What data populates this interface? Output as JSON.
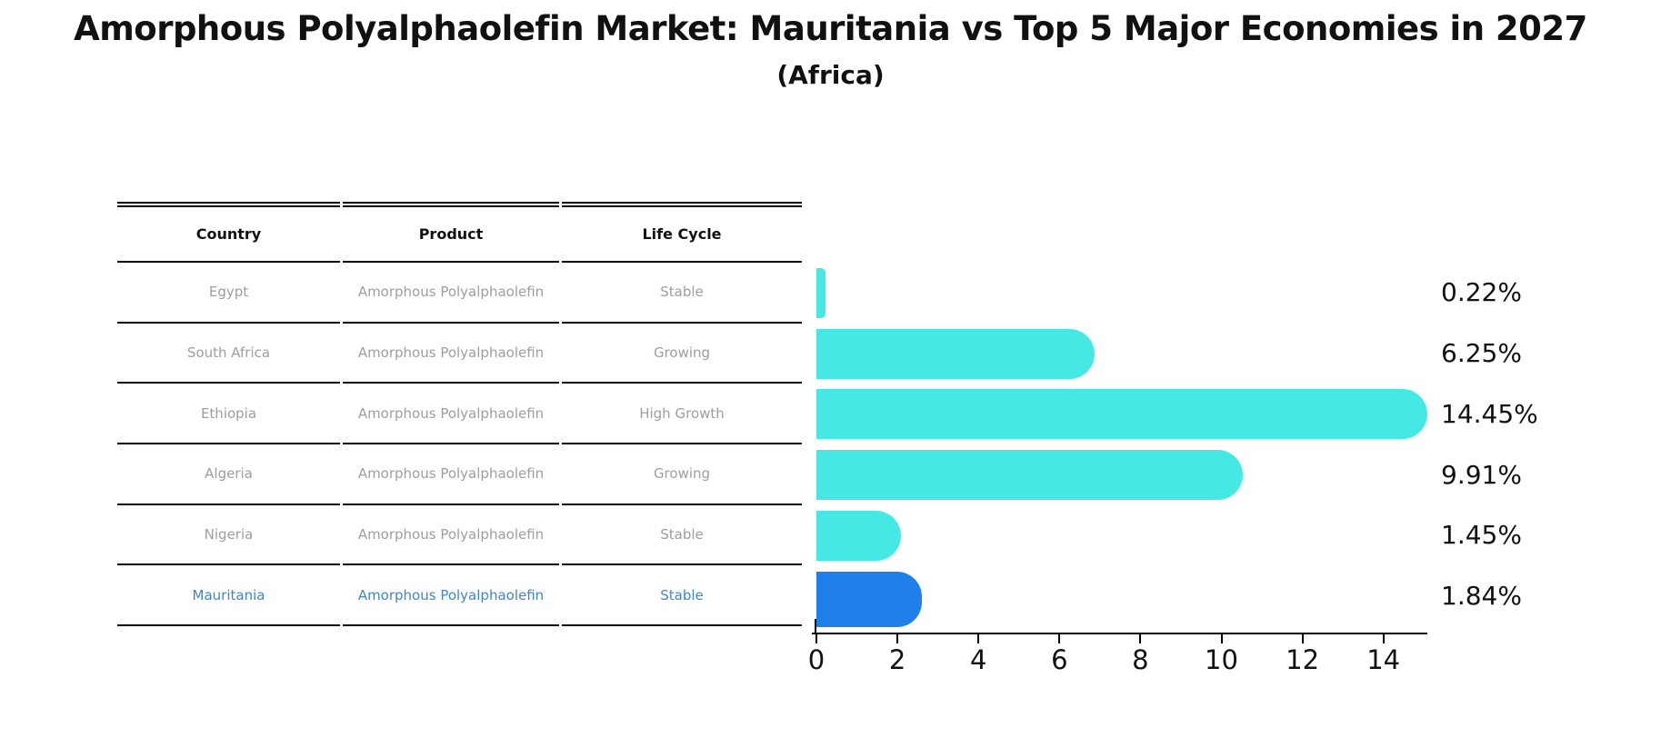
{
  "title": "Amorphous Polyalphaolefin Market: Mauritania vs Top 5 Major Economies in 2027",
  "subtitle": "(Africa)",
  "table": {
    "headers": [
      "Country",
      "Product",
      "Life Cycle"
    ],
    "rows": [
      {
        "country": "Egypt",
        "product": "Amorphous Polyalphaolefin",
        "life_cycle": "Stable",
        "highlight": false
      },
      {
        "country": "South Africa",
        "product": "Amorphous Polyalphaolefin",
        "life_cycle": "Growing",
        "highlight": false
      },
      {
        "country": "Ethiopia",
        "product": "Amorphous Polyalphaolefin",
        "life_cycle": "High Growth",
        "highlight": false
      },
      {
        "country": "Algeria",
        "product": "Amorphous Polyalphaolefin",
        "life_cycle": "Growing",
        "highlight": false
      },
      {
        "country": "Nigeria",
        "product": "Amorphous Polyalphaolefin",
        "life_cycle": "Stable",
        "highlight": false
      },
      {
        "country": "Mauritania",
        "product": "Amorphous Polyalphaolefin",
        "life_cycle": "Stable",
        "highlight": true
      }
    ]
  },
  "chart_data": {
    "type": "bar",
    "orientation": "horizontal",
    "title": "Amorphous Polyalphaolefin Market: Mauritania vs Top 5 Major Economies in 2027 (Africa)",
    "categories": [
      "Egypt",
      "South Africa",
      "Ethiopia",
      "Algeria",
      "Nigeria",
      "Mauritania"
    ],
    "values": [
      0.22,
      6.25,
      14.45,
      9.91,
      1.45,
      1.84
    ],
    "value_labels": [
      "0.22%",
      "6.25%",
      "14.45%",
      "9.91%",
      "1.45%",
      "1.84%"
    ],
    "x_ticks": [
      0,
      2,
      4,
      6,
      8,
      10,
      12,
      14
    ],
    "xlim": [
      0,
      15.1
    ],
    "xlabel": "",
    "ylabel": "",
    "grid": false,
    "legend": false,
    "highlight_index": 5
  },
  "colors": {
    "bar": "#45e8e2",
    "highlight_bar": "#1e80e8",
    "highlight_text": "#4285c6",
    "table_text": "#9e9e9e",
    "axis": "#000000",
    "label_text": "#111111"
  }
}
